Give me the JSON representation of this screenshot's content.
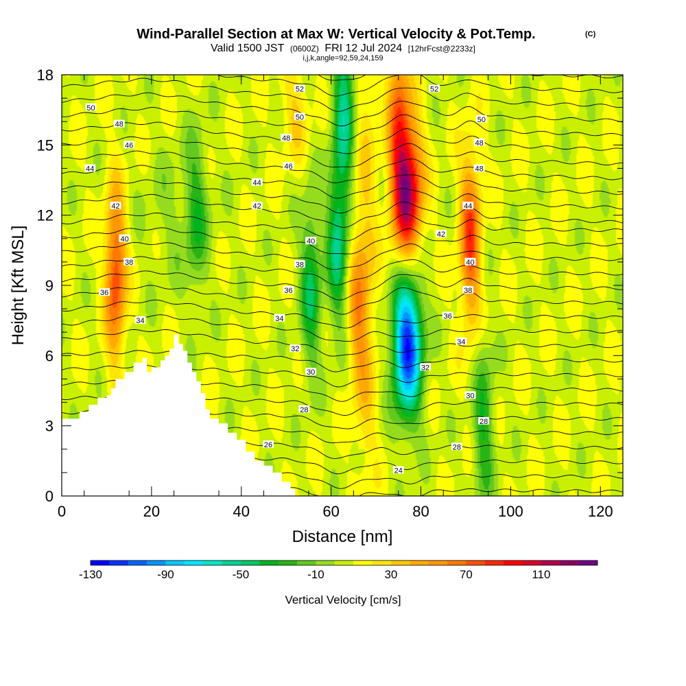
{
  "title": {
    "main": "Wind-Parallel Section at Max W: Vertical Velocity & Pot.Temp.",
    "main_tag": "(C)",
    "valid_prefix": "Valid 1500 JST",
    "valid_utc": "(0600Z)",
    "valid_date": "FRI 12 Jul 2024",
    "forecast": "[12hrFcst@2233z]",
    "indices": "i,j,k,angle=92,59,24,159"
  },
  "chart_data": {
    "type": "heatmap",
    "xlabel": "Distance [nm]",
    "ylabel": "Height [Kft MSL]",
    "xlim": [
      0,
      125
    ],
    "ylim": [
      0,
      18
    ],
    "x_ticks": [
      0,
      20,
      40,
      60,
      80,
      100,
      120
    ],
    "y_ticks": [
      0,
      3,
      6,
      9,
      12,
      15,
      18
    ],
    "colorbar": {
      "title": "Vertical Velocity [cm/s]",
      "min": -130,
      "max": 130,
      "step": 10,
      "tick_labels": [
        "-130",
        "-90",
        "-50",
        "-10",
        "30",
        "70",
        "110"
      ],
      "tick_values": [
        -130,
        -90,
        -50,
        -10,
        30,
        70,
        110
      ],
      "colors": [
        "#0000ff",
        "#0a32ff",
        "#0064ff",
        "#0096ff",
        "#00c8ff",
        "#00e6ff",
        "#00e6c8",
        "#00d296",
        "#00c864",
        "#00b41e",
        "#28b414",
        "#64c81e",
        "#96dc1e",
        "#c8f000",
        "#ffff00",
        "#ffe600",
        "#ffc800",
        "#ffaa00",
        "#ff9600",
        "#ff7800",
        "#ff5000",
        "#ff2800",
        "#ff0000",
        "#dc0028",
        "#b40050",
        "#8c0064",
        "#6e0082"
      ]
    },
    "terrain": [
      [
        0,
        3.3
      ],
      [
        2,
        3.3
      ],
      [
        4,
        3.6
      ],
      [
        6,
        3.9
      ],
      [
        8,
        4.2
      ],
      [
        10,
        4.3
      ],
      [
        11,
        4.6
      ],
      [
        12,
        5.0
      ],
      [
        14,
        5.3
      ],
      [
        16,
        5.7
      ],
      [
        18,
        5.9
      ],
      [
        19,
        5.3
      ],
      [
        20,
        5.5
      ],
      [
        22,
        5.8
      ],
      [
        23,
        6.0
      ],
      [
        24,
        6.3
      ],
      [
        25,
        6.9
      ],
      [
        26,
        6.5
      ],
      [
        27,
        6.2
      ],
      [
        28,
        5.7
      ],
      [
        29,
        5.3
      ],
      [
        30,
        4.9
      ],
      [
        31,
        4.4
      ],
      [
        32,
        3.7
      ],
      [
        33,
        3.3
      ],
      [
        35,
        3.1
      ],
      [
        37,
        2.7
      ],
      [
        39,
        2.4
      ],
      [
        41,
        1.9
      ],
      [
        43,
        1.5
      ],
      [
        45,
        1.3
      ],
      [
        47,
        1.0
      ],
      [
        49,
        0.6
      ],
      [
        51,
        0.3
      ],
      [
        52,
        0.0
      ]
    ],
    "wmax_cell": [
      {
        "x": 77,
        "y": 13,
        "w": 120
      },
      {
        "x": 12,
        "y": 9.5,
        "w": 80
      },
      {
        "x": 91,
        "y": 11,
        "w": 80
      },
      {
        "x": 66,
        "y": 8,
        "w": 50
      },
      {
        "x": 75,
        "y": 16.5,
        "w": 60
      }
    ],
    "wmin_cell": [
      {
        "x": 77,
        "y": 6.5,
        "w": -120
      },
      {
        "x": 61.5,
        "y": 11,
        "w": -50
      },
      {
        "x": 55.5,
        "y": 9,
        "w": -40
      },
      {
        "x": 63,
        "y": 17,
        "w": -50
      },
      {
        "x": 94,
        "y": 3,
        "w": -30
      },
      {
        "x": 30,
        "y": 12,
        "w": -20
      }
    ],
    "theta_contours": [
      24,
      26,
      28,
      30,
      32,
      34,
      36,
      38,
      40,
      42,
      44,
      46,
      48,
      50,
      52
    ],
    "theta_labels": [
      {
        "text": "50",
        "x": 6.5,
        "y": 16.6
      },
      {
        "text": "48",
        "x": 12.8,
        "y": 15.9
      },
      {
        "text": "46",
        "x": 15,
        "y": 15.0
      },
      {
        "text": "44",
        "x": 6.3,
        "y": 14.0
      },
      {
        "text": "42",
        "x": 12,
        "y": 12.4
      },
      {
        "text": "40",
        "x": 14,
        "y": 11.0
      },
      {
        "text": "38",
        "x": 15,
        "y": 10.0
      },
      {
        "text": "36",
        "x": 9.5,
        "y": 8.7
      },
      {
        "text": "34",
        "x": 17.5,
        "y": 7.5
      },
      {
        "text": "52",
        "x": 53,
        "y": 17.4
      },
      {
        "text": "50",
        "x": 53,
        "y": 16.2
      },
      {
        "text": "48",
        "x": 50,
        "y": 15.3
      },
      {
        "text": "46",
        "x": 50.5,
        "y": 14.1
      },
      {
        "text": "44",
        "x": 43.5,
        "y": 13.4
      },
      {
        "text": "42",
        "x": 43.5,
        "y": 12.4
      },
      {
        "text": "40",
        "x": 55.5,
        "y": 10.9
      },
      {
        "text": "38",
        "x": 53,
        "y": 9.9
      },
      {
        "text": "36",
        "x": 50.5,
        "y": 8.8
      },
      {
        "text": "34",
        "x": 48.5,
        "y": 7.6
      },
      {
        "text": "32",
        "x": 52,
        "y": 6.3
      },
      {
        "text": "30",
        "x": 55.5,
        "y": 5.3
      },
      {
        "text": "28",
        "x": 54,
        "y": 3.7
      },
      {
        "text": "26",
        "x": 46,
        "y": 2.2
      },
      {
        "text": "24",
        "x": 75,
        "y": 1.1
      },
      {
        "text": "52",
        "x": 83,
        "y": 17.4
      },
      {
        "text": "50",
        "x": 93.5,
        "y": 16.1
      },
      {
        "text": "48",
        "x": 93,
        "y": 15.1
      },
      {
        "text": "48",
        "x": 93,
        "y": 14.0
      },
      {
        "text": "44",
        "x": 90.5,
        "y": 12.4
      },
      {
        "text": "42",
        "x": 84.5,
        "y": 11.2
      },
      {
        "text": "40",
        "x": 91,
        "y": 10.0
      },
      {
        "text": "38",
        "x": 90.5,
        "y": 8.8
      },
      {
        "text": "36",
        "x": 86,
        "y": 7.7
      },
      {
        "text": "34",
        "x": 89,
        "y": 6.6
      },
      {
        "text": "32",
        "x": 81,
        "y": 5.5
      },
      {
        "text": "30",
        "x": 91,
        "y": 4.3
      },
      {
        "text": "28",
        "x": 94,
        "y": 3.2
      },
      {
        "text": "28",
        "x": 88,
        "y": 2.1
      }
    ]
  }
}
